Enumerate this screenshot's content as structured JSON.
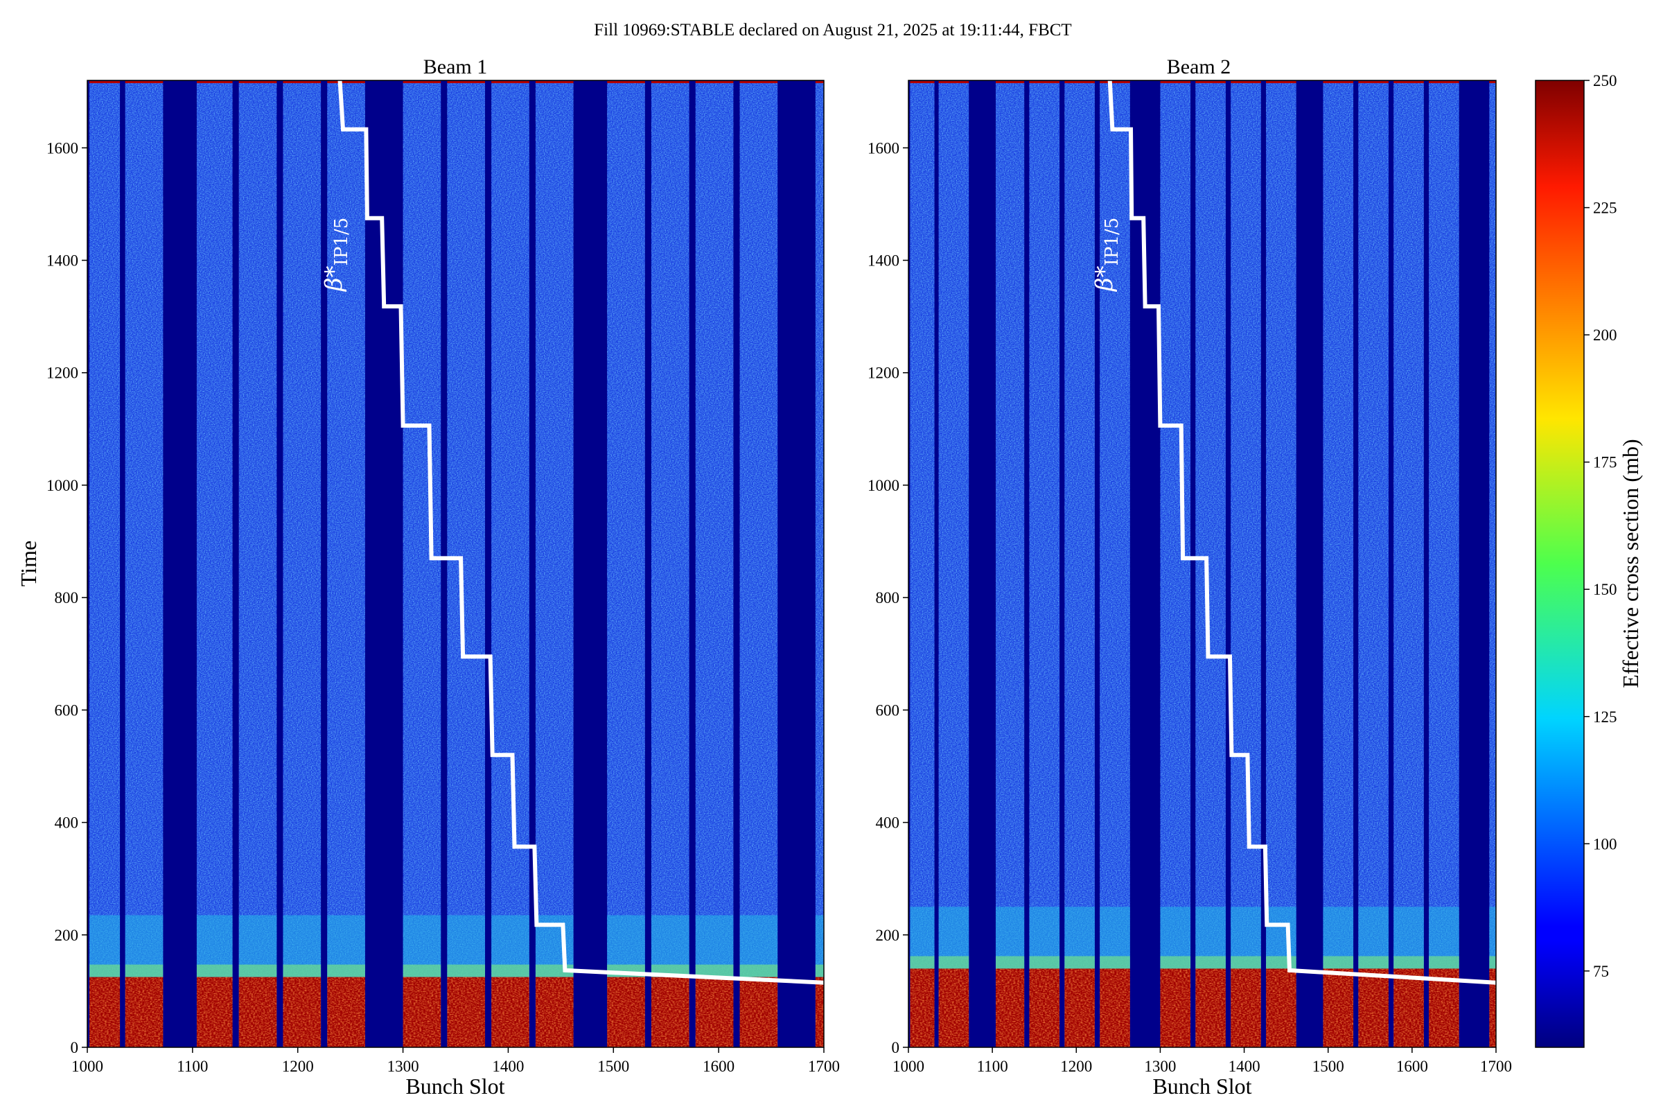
{
  "figure": {
    "suptitle": "Fill 10969:STABLE declared on August 21, 2025 at 19:11:44, FBCT"
  },
  "chart_data": [
    {
      "type": "heatmap",
      "title": "Beam 1",
      "xlabel": "Bunch Slot",
      "ylabel": "Time",
      "xlim": [
        1000,
        1700
      ],
      "ylim": [
        0,
        1720
      ],
      "xticks": [
        1000,
        1100,
        1200,
        1300,
        1400,
        1500,
        1600,
        1700
      ],
      "yticks": [
        0,
        200,
        400,
        600,
        800,
        1000,
        1200,
        1400,
        1600
      ],
      "filled_slot_ranges": [
        [
          1002,
          1031
        ],
        [
          1036,
          1072
        ],
        [
          1104,
          1138
        ],
        [
          1144,
          1180
        ],
        [
          1186,
          1222
        ],
        [
          1228,
          1264
        ],
        [
          1300,
          1336
        ],
        [
          1342,
          1378
        ],
        [
          1384,
          1420
        ],
        [
          1426,
          1462
        ],
        [
          1494,
          1530
        ],
        [
          1536,
          1572
        ],
        [
          1578,
          1614
        ],
        [
          1620,
          1656
        ],
        [
          1692,
          1700
        ]
      ],
      "high_cross_section_until_time": 125,
      "beta_star_step_line": {
        "label": "β*",
        "label_sub": "IP1/5",
        "points": [
          [
            1240,
            1720
          ],
          [
            1243,
            1633
          ],
          [
            1265,
            1633
          ],
          [
            1266,
            1475
          ],
          [
            1280,
            1475
          ],
          [
            1282,
            1318
          ],
          [
            1298,
            1318
          ],
          [
            1300,
            1106
          ],
          [
            1325,
            1106
          ],
          [
            1327,
            870
          ],
          [
            1355,
            870
          ],
          [
            1357,
            695
          ],
          [
            1383,
            695
          ],
          [
            1385,
            520
          ],
          [
            1404,
            520
          ],
          [
            1406,
            357
          ],
          [
            1425,
            357
          ],
          [
            1427,
            218
          ],
          [
            1452,
            218
          ],
          [
            1454,
            137
          ],
          [
            1700,
            115
          ]
        ]
      }
    },
    {
      "type": "heatmap",
      "title": "Beam 2",
      "xlabel": "Bunch Slot",
      "ylabel": "",
      "xlim": [
        1000,
        1700
      ],
      "ylim": [
        0,
        1720
      ],
      "xticks": [
        1000,
        1100,
        1200,
        1300,
        1400,
        1500,
        1600,
        1700
      ],
      "yticks": [
        0,
        200,
        400,
        600,
        800,
        1000,
        1200,
        1400,
        1600
      ],
      "filled_slot_ranges": [
        [
          1002,
          1031
        ],
        [
          1036,
          1072
        ],
        [
          1104,
          1138
        ],
        [
          1144,
          1180
        ],
        [
          1186,
          1222
        ],
        [
          1228,
          1264
        ],
        [
          1300,
          1336
        ],
        [
          1342,
          1378
        ],
        [
          1384,
          1420
        ],
        [
          1426,
          1462
        ],
        [
          1494,
          1530
        ],
        [
          1536,
          1572
        ],
        [
          1578,
          1614
        ],
        [
          1620,
          1656
        ],
        [
          1692,
          1700
        ]
      ],
      "high_cross_section_until_time": 140,
      "beta_star_step_line": {
        "label": "β*",
        "label_sub": "IP1/5",
        "points": [
          [
            1240,
            1720
          ],
          [
            1243,
            1633
          ],
          [
            1265,
            1633
          ],
          [
            1266,
            1475
          ],
          [
            1280,
            1475
          ],
          [
            1282,
            1318
          ],
          [
            1298,
            1318
          ],
          [
            1300,
            1106
          ],
          [
            1325,
            1106
          ],
          [
            1327,
            870
          ],
          [
            1355,
            870
          ],
          [
            1357,
            695
          ],
          [
            1383,
            695
          ],
          [
            1385,
            520
          ],
          [
            1404,
            520
          ],
          [
            1406,
            357
          ],
          [
            1425,
            357
          ],
          [
            1427,
            218
          ],
          [
            1452,
            218
          ],
          [
            1454,
            137
          ],
          [
            1700,
            115
          ]
        ]
      }
    }
  ],
  "colorbar": {
    "label": "Effective cross section (mb)",
    "range": [
      60,
      250
    ],
    "ticks": [
      75,
      100,
      125,
      150,
      175,
      200,
      225,
      250
    ],
    "colormap": "jet"
  },
  "colors": {
    "empty_slot": "#00008b",
    "filled_base": "#1a3fe0",
    "high": "#a00000",
    "line": "#ffffff"
  }
}
